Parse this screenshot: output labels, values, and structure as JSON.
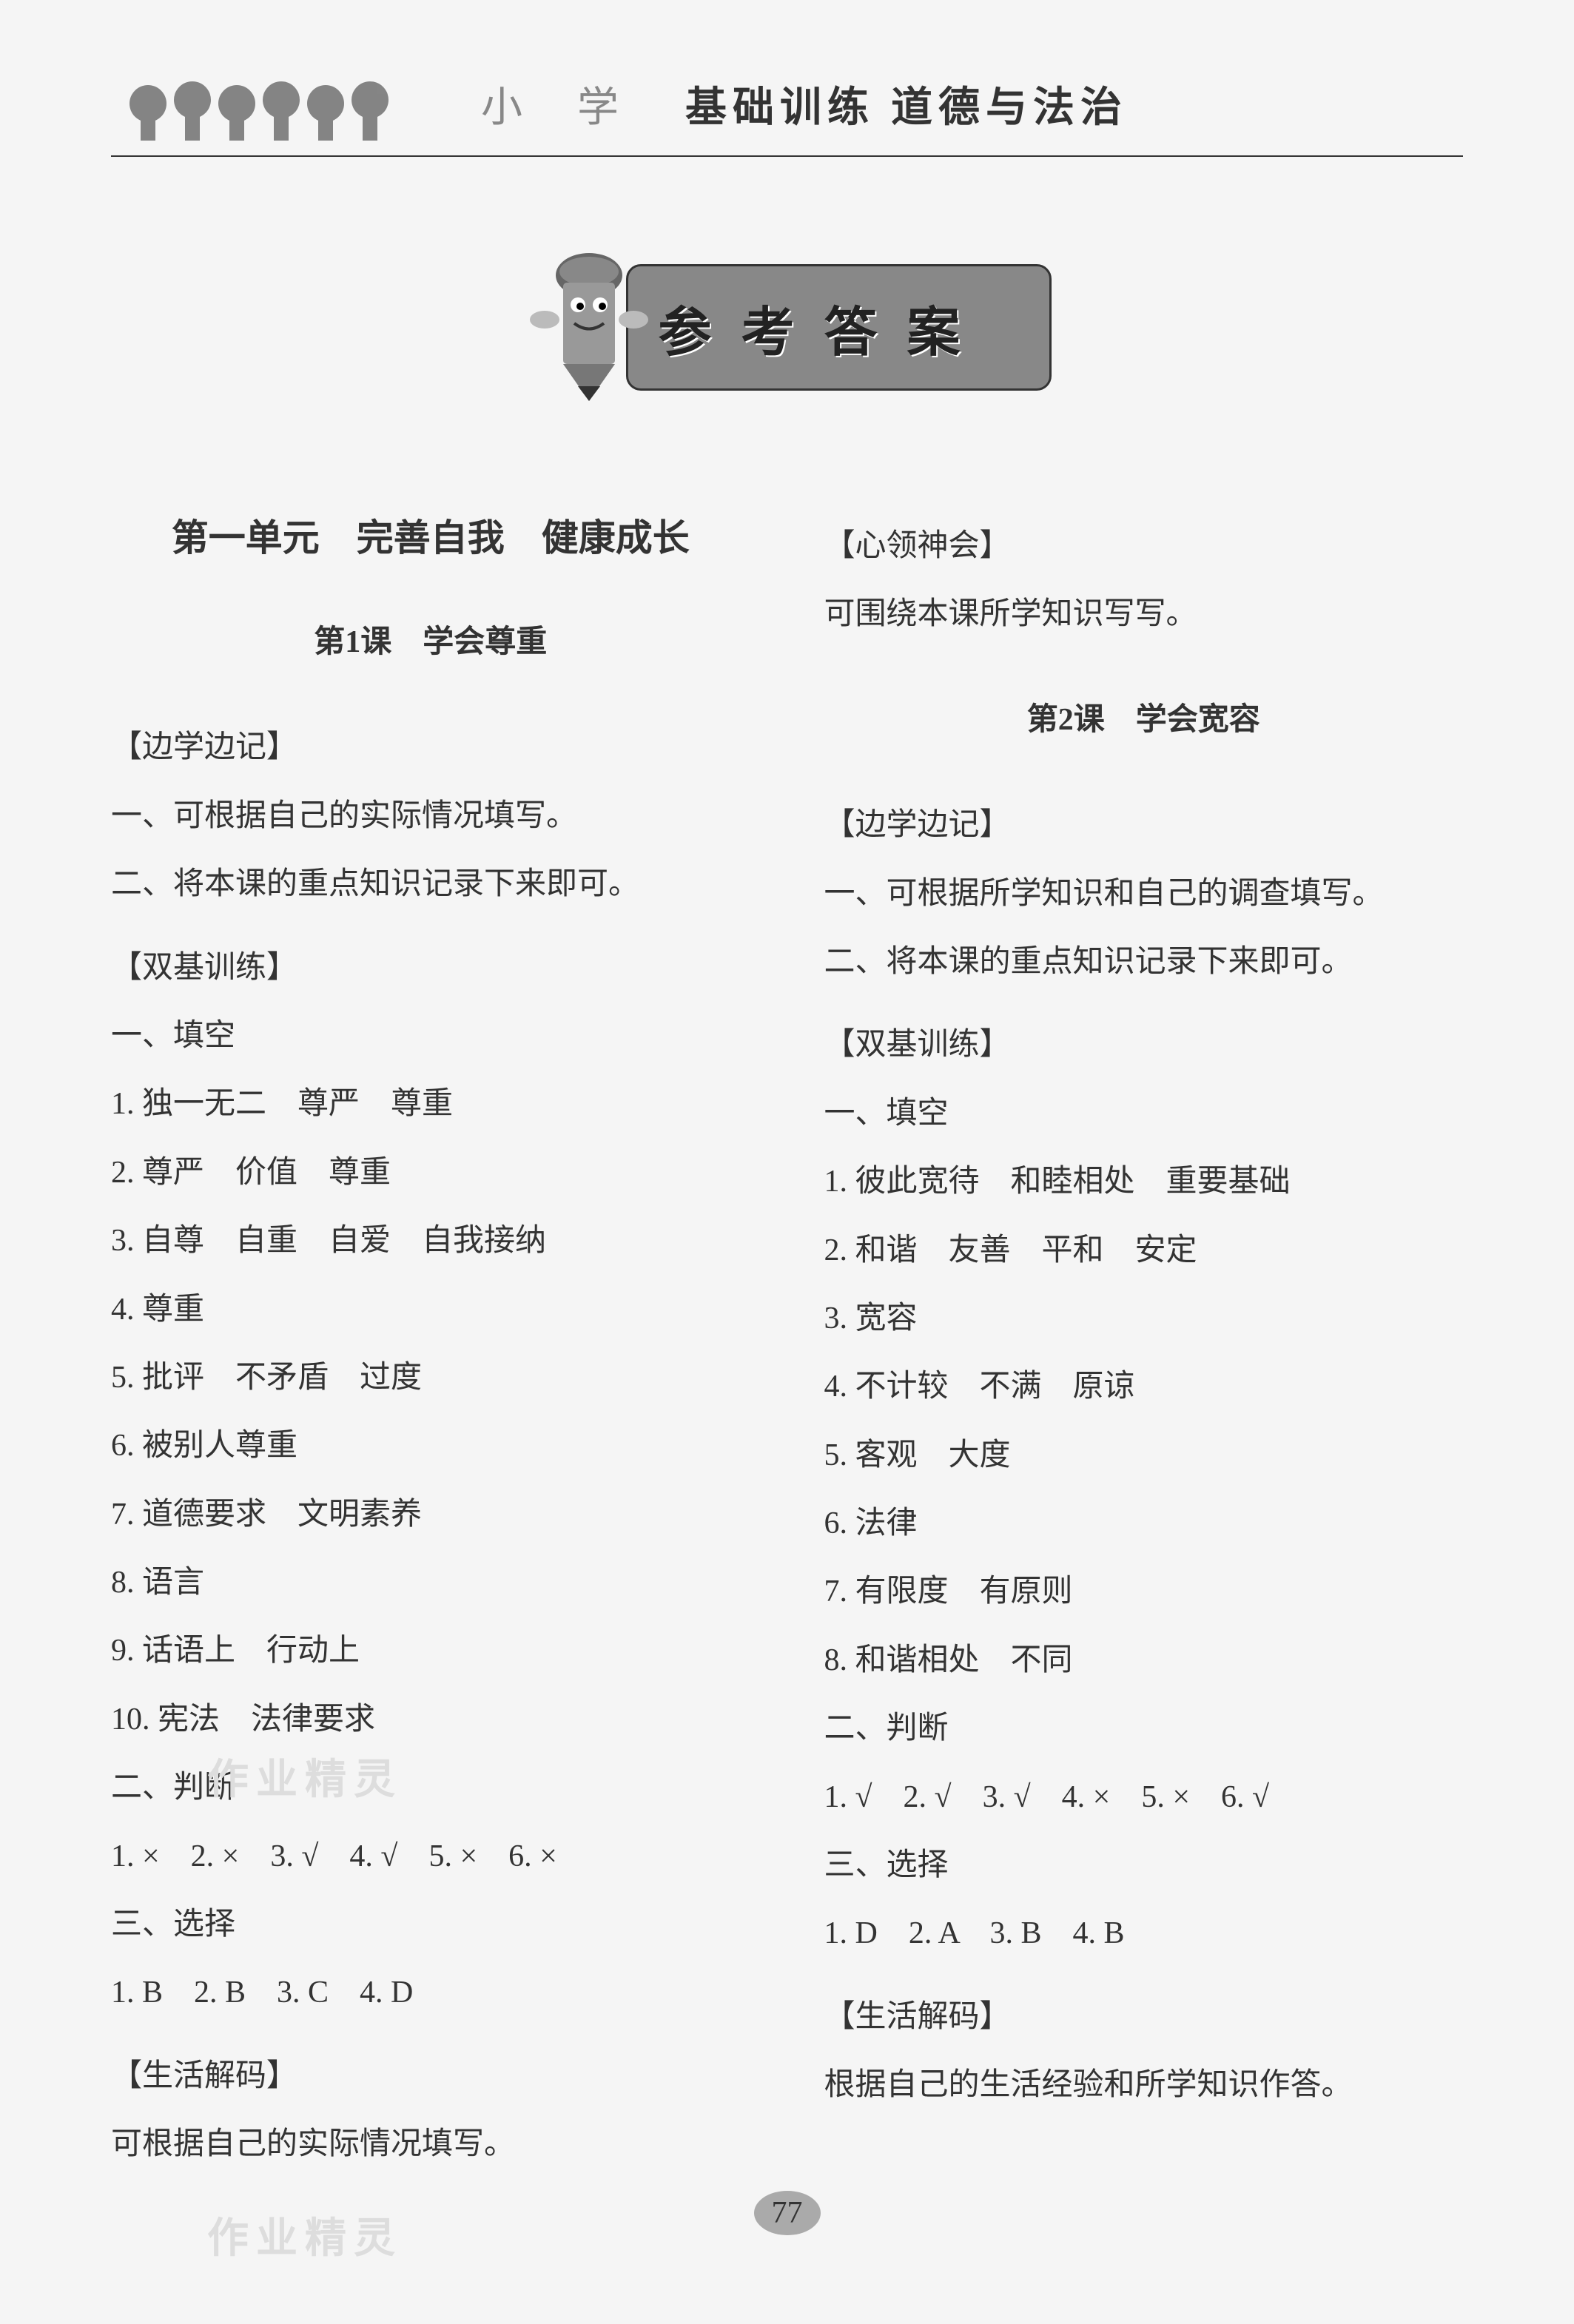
{
  "header": {
    "subject_label": "小 学",
    "book_title": "基础训练  道德与法治"
  },
  "banner": {
    "title": "参考答案"
  },
  "left_column": {
    "unit_title": "第一单元　完善自我　健康成长",
    "lesson_title": "第1课　学会尊重",
    "sections": [
      {
        "header": "【边学边记】"
      },
      {
        "line": "一、可根据自己的实际情况填写。"
      },
      {
        "line": "二、将本课的重点知识记录下来即可。"
      },
      {
        "header": "【双基训练】"
      },
      {
        "line": "一、填空"
      },
      {
        "line": "1. 独一无二　尊严　尊重"
      },
      {
        "line": "2. 尊严　价值　尊重"
      },
      {
        "line": "3. 自尊　自重　自爱　自我接纳"
      },
      {
        "line": "4. 尊重"
      },
      {
        "line": "5. 批评　不矛盾　过度"
      },
      {
        "line": "6. 被别人尊重"
      },
      {
        "line": "7. 道德要求　文明素养"
      },
      {
        "line": "8. 语言"
      },
      {
        "line": "9. 话语上　行动上"
      },
      {
        "line": "10. 宪法　法律要求"
      },
      {
        "line": "二、判断"
      },
      {
        "line": "1. ×　2. ×　3. √　4. √　5. ×　6. ×"
      },
      {
        "line": "三、选择"
      },
      {
        "line": "1. B　2. B　3. C　4. D"
      },
      {
        "header": "【生活解码】"
      },
      {
        "line": "可根据自己的实际情况填写。"
      }
    ]
  },
  "right_column": {
    "top_sections": [
      {
        "header": "【心领神会】"
      },
      {
        "line": "可围绕本课所学知识写写。"
      }
    ],
    "lesson_title": "第2课　学会宽容",
    "sections": [
      {
        "header": "【边学边记】"
      },
      {
        "line": "一、可根据所学知识和自己的调查填写。"
      },
      {
        "line": "二、将本课的重点知识记录下来即可。"
      },
      {
        "header": "【双基训练】"
      },
      {
        "line": "一、填空"
      },
      {
        "line": "1. 彼此宽待　和睦相处　重要基础"
      },
      {
        "line": "2. 和谐　友善　平和　安定"
      },
      {
        "line": "3. 宽容"
      },
      {
        "line": "4. 不计较　不满　原谅"
      },
      {
        "line": "5. 客观　大度"
      },
      {
        "line": "6. 法律"
      },
      {
        "line": "7. 有限度　有原则"
      },
      {
        "line": "8. 和谐相处　不同"
      },
      {
        "line": "二、判断"
      },
      {
        "line": "1. √　2. √　3. √　4. ×　5. ×　6. √"
      },
      {
        "line": "三、选择"
      },
      {
        "line": "1. D　2. A　3. B　4. B"
      },
      {
        "header": "【生活解码】"
      },
      {
        "line": "根据自己的生活经验和所学知识作答。"
      }
    ]
  },
  "page_number": "77",
  "watermark_text": "作业精灵"
}
